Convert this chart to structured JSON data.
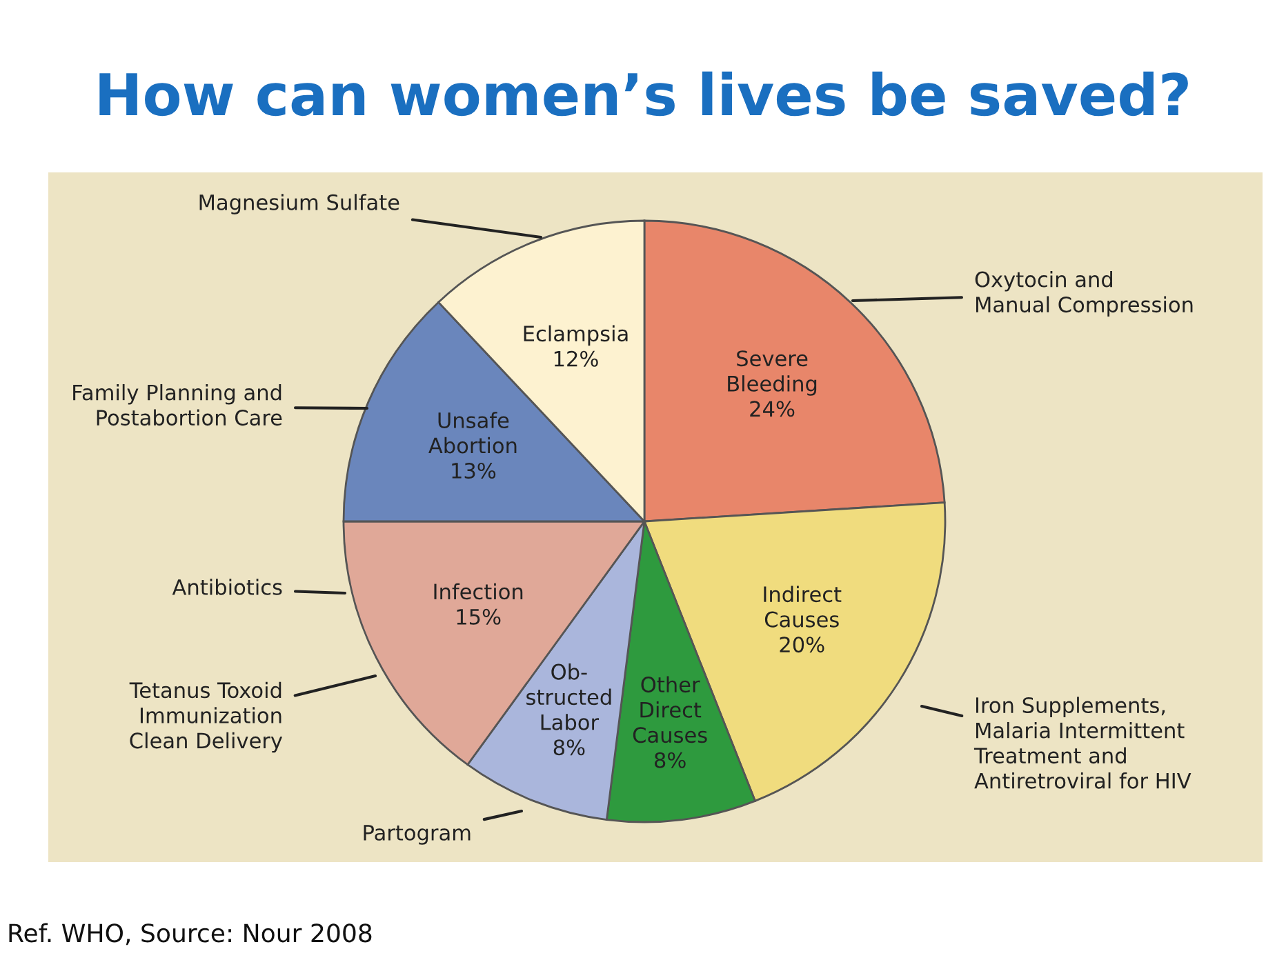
{
  "chart_data": {
    "type": "pie",
    "title": "How can women’s lives be saved?",
    "categories": [
      "Severe\nBleeding",
      "Indirect\nCauses",
      "Other\nDirect\nCauses",
      "Ob-\nstructed\nLabor",
      "Infection",
      "Unsafe\nAbortion",
      "Eclampsia"
    ],
    "values": [
      24,
      20,
      8,
      8,
      15,
      13,
      12
    ],
    "colors": [
      "#e8866a",
      "#f0dc7e",
      "#2e9a3e",
      "#aab6dc",
      "#e0a898",
      "#6a86bc",
      "#fdf2d0"
    ],
    "value_labels": [
      "24%",
      "20%",
      "8%",
      "8%",
      "15%",
      "13%",
      "12%"
    ],
    "annotations": [
      "Magnesium Sulfate",
      "Oxytocin and\nManual Compression",
      "Family Planning and\nPostabortion Care",
      "Antibiotics",
      "Tetanus Toxoid\nImmunization\nClean Delivery",
      "Partogram",
      "Iron Supplements,\nMalaria Intermittent\nTreatment and\nAntiretroviral for HIV",
      "Ref. WHO, Source: Nour 2008"
    ]
  }
}
